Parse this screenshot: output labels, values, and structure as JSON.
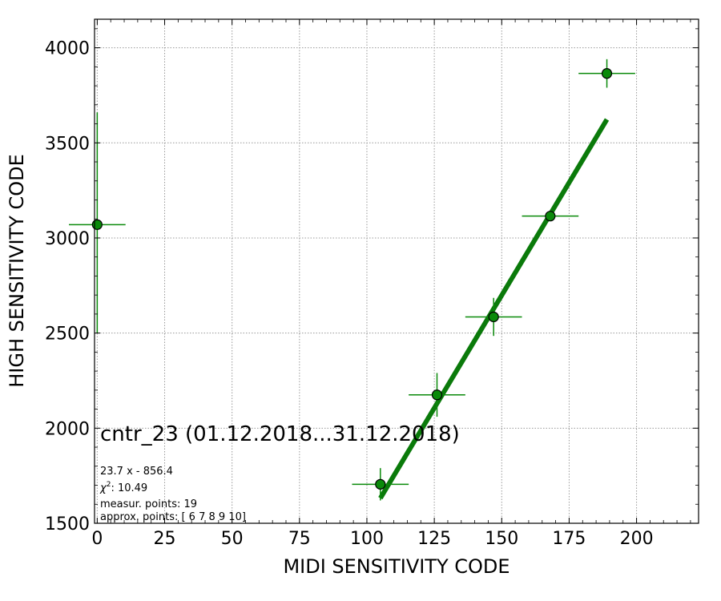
{
  "chart_data": {
    "type": "scatter",
    "xlabel": "MIDI SENSITIVITY CODE",
    "ylabel": "HIGH SENSITIVITY CODE",
    "xlim": [
      -1,
      223
    ],
    "ylim": [
      1500,
      4150
    ],
    "xticks": [
      0,
      25,
      50,
      75,
      100,
      125,
      150,
      175,
      200
    ],
    "yticks": [
      1500,
      2000,
      2500,
      3000,
      3500,
      4000
    ],
    "grid": true,
    "colors": {
      "marker_face": "#0a8a0a",
      "marker_edge": "#000000",
      "errorbar": "#0a8a0a",
      "fit_line": "#0a7a0a",
      "grid": "#999999"
    },
    "series": [
      {
        "kind": "errorbar-points",
        "points": [
          {
            "x": 0,
            "y": 3070,
            "xerr": 10.5,
            "yerr_up": 590,
            "yerr_down": 570
          },
          {
            "x": 105,
            "y": 1705,
            "xerr": 10.5,
            "yerr_up": 85,
            "yerr_down": 85
          },
          {
            "x": 126,
            "y": 2175,
            "xerr": 10.5,
            "yerr_up": 115,
            "yerr_down": 115
          },
          {
            "x": 147,
            "y": 2585,
            "xerr": 10.5,
            "yerr_up": 100,
            "yerr_down": 100
          },
          {
            "x": 168,
            "y": 3115,
            "xerr": 10.5,
            "yerr_up": 0,
            "yerr_down": 0
          },
          {
            "x": 189,
            "y": 3865,
            "xerr": 10.5,
            "yerr_up": 75,
            "yerr_down": 75
          }
        ]
      },
      {
        "kind": "fit-line",
        "x": [
          105,
          189
        ],
        "y": [
          1632,
          3623
        ]
      }
    ],
    "annotations": {
      "title_text": "cntr_23 (01.12.2018...31.12.2018)",
      "fit_text": "23.7 x - 856.4",
      "chi_prefix": "χ",
      "chi_sup": "2",
      "chi_value": ": 10.49",
      "measur_text": "measur. points: 19",
      "approx_text": "approx. points: [ 6  7  8  9 10]"
    }
  }
}
